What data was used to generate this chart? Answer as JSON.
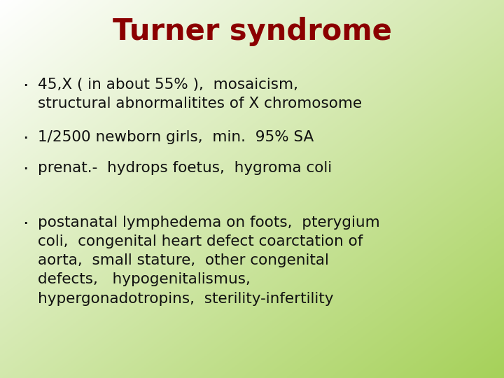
{
  "title": "Turner syndrome",
  "title_color": "#8B0000",
  "title_fontsize": 30,
  "bullet_color": "#111111",
  "bullet_fontsize": 15.5,
  "bullet_char": "·",
  "bg_color_topleft": [
    1.0,
    1.0,
    1.0
  ],
  "bg_color_bottomright": [
    0.65,
    0.82,
    0.35
  ],
  "bullets_group1": [
    "45,X ( in about 55% ),  mosaicism,\nstructural abnormalitites of X chromosome",
    "1/2500 newborn girls,  min.  95% SA",
    "prenat.-  hydrops foetus,  hygroma coli"
  ],
  "bullets_group2": [
    "postanatal lymphedema on foots,  pterygium\ncoli,  congenital heart defect coarctation of\naorta,  small stature,  other congenital\ndefects,   hypogenitalismus,\nhypergonadotropins,  sterility-infertility"
  ],
  "figwidth": 7.2,
  "figheight": 5.4,
  "dpi": 100
}
